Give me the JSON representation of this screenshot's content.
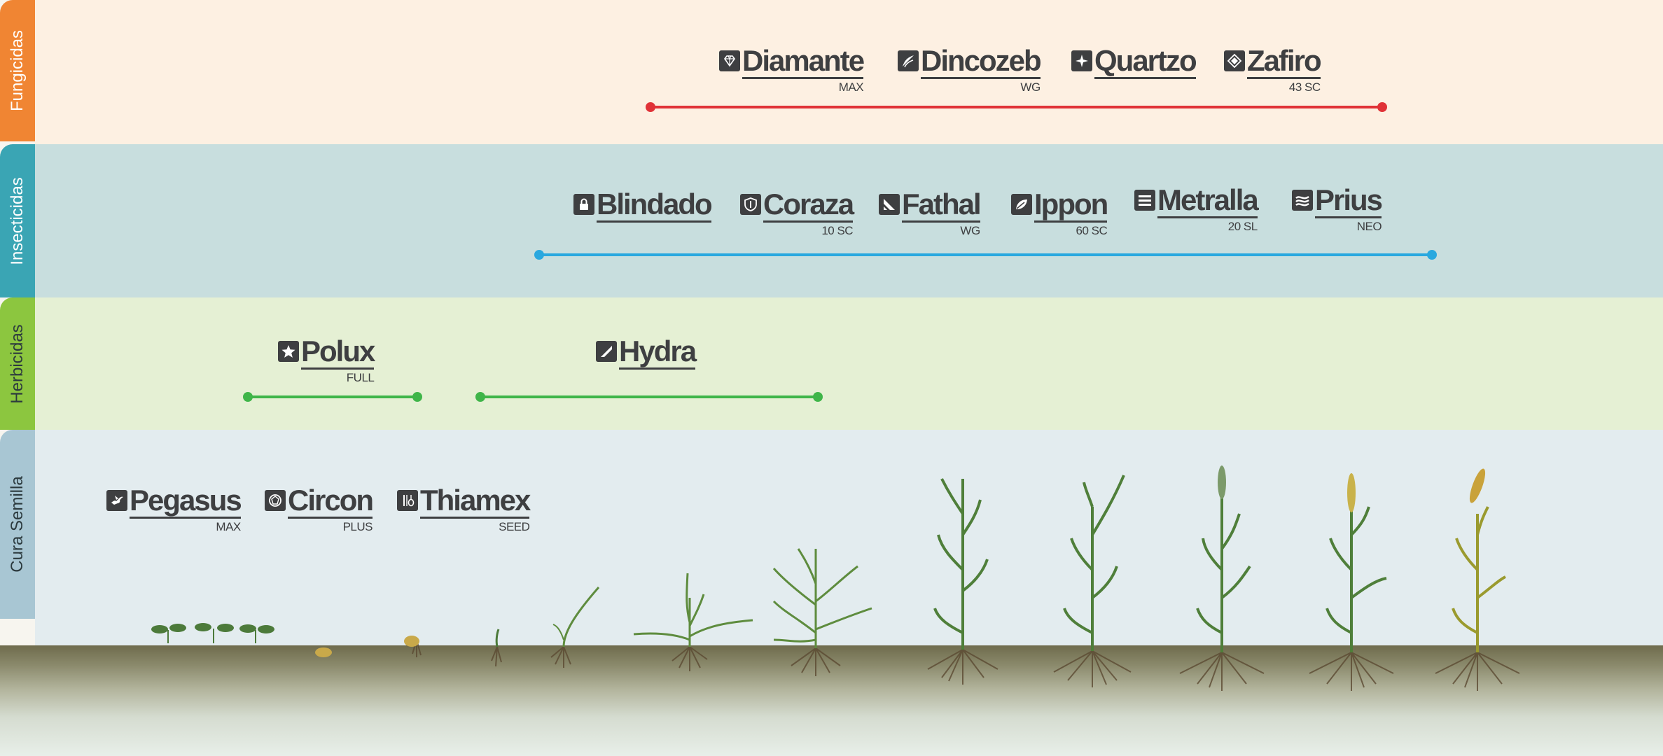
{
  "colors": {
    "fungicidas": "#f08533",
    "insecticidas": "#3aa5b4",
    "herbicidas": "#8cc63f",
    "cura_semilla": "#a8c6d3",
    "fungicidas_line": "#e03237",
    "insecticidas_line": "#29a8df",
    "herbicidas_line": "#3fb549",
    "brand_text": "#3e3f41"
  },
  "categories": {
    "fungicidas": "Fungicidas",
    "insecticidas": "Insecticidas",
    "herbicidas": "Herbicidas",
    "cura_semilla": "Cura Semilla"
  },
  "fungicidas": {
    "products": [
      {
        "name": "Diamante",
        "sub": "MAX",
        "icon": "diamond-icon"
      },
      {
        "name": "Dincozeb",
        "sub": "WG",
        "icon": "leaves-icon"
      },
      {
        "name": "Quartzo",
        "sub": "",
        "icon": "sparkle-icon"
      },
      {
        "name": "Zafiro",
        "sub": "43 SC",
        "icon": "gem-icon"
      }
    ]
  },
  "insecticidas": {
    "products": [
      {
        "name": "Blindado",
        "sub": "",
        "icon": "lock-icon"
      },
      {
        "name": "Coraza",
        "sub": "10 SC",
        "icon": "shield-icon"
      },
      {
        "name": "Fathal",
        "sub": "WG",
        "icon": "slash-icon"
      },
      {
        "name": "Ippon",
        "sub": "60 SC",
        "icon": "leaf-icon"
      },
      {
        "name": "Metralla",
        "sub": "20 SL",
        "icon": "stripes-icon"
      },
      {
        "name": "Prius",
        "sub": "NEO",
        "icon": "wave-icon"
      }
    ]
  },
  "herbicidas": {
    "products": [
      {
        "name": "Polux",
        "sub": "FULL",
        "icon": "star-icon"
      },
      {
        "name": "Hydra",
        "sub": "",
        "icon": "blade-icon"
      }
    ]
  },
  "cura_semilla": {
    "products": [
      {
        "name": "Pegasus",
        "sub": "MAX",
        "icon": "pegasus-icon"
      },
      {
        "name": "Circon",
        "sub": "PLUS",
        "icon": "circle-gem-icon"
      },
      {
        "name": "Thiamex",
        "sub": "SEED",
        "icon": "seed-icon"
      }
    ]
  }
}
